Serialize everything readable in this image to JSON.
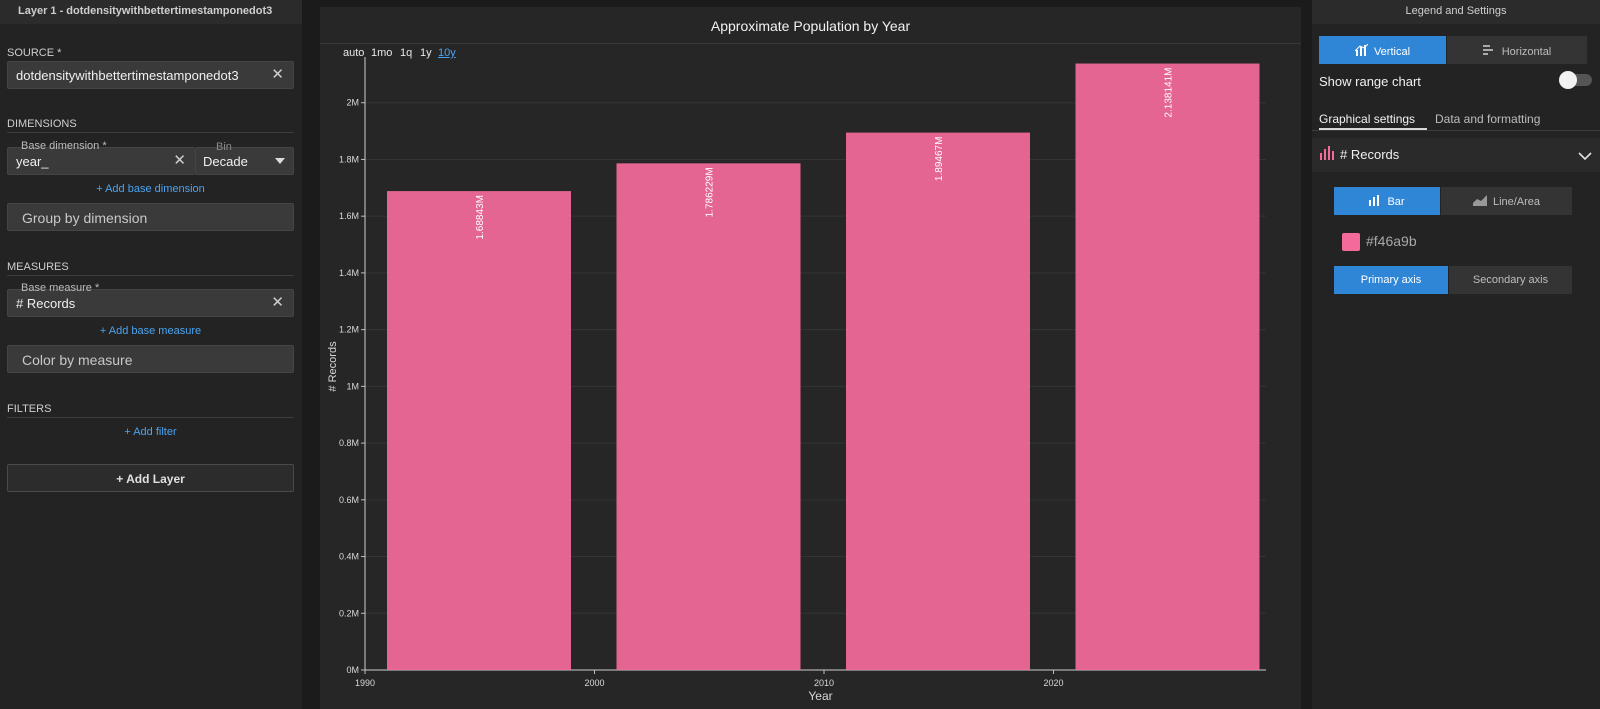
{
  "left_panel": {
    "layer_title": "Layer 1 - dotdensitywithbettertimestamponedot3",
    "source_label": "SOURCE *",
    "source_value": "dotdensitywithbettertimestamponedot3",
    "dimensions_label": "DIMENSIONS",
    "base_dimension_label": "Base dimension *",
    "base_dimension_value": "year_",
    "bin_label": "Bin",
    "bin_value": "Decade",
    "add_base_dimension": "+ Add base dimension",
    "group_by_dimension": "Group by dimension",
    "measures_label": "MEASURES",
    "base_measure_label": "Base measure *",
    "base_measure_value": "# Records",
    "add_base_measure": "+ Add base measure",
    "color_by_measure": "Color by measure",
    "filters_label": "FILTERS",
    "add_filter": "+ Add filter",
    "add_layer": "+ Add Layer",
    "clear_icon": "close-icon"
  },
  "zoom_options": [
    "auto",
    "1mo",
    "1q",
    "1y",
    "10y"
  ],
  "zoom_active": "10y",
  "chart_data": {
    "type": "bar",
    "title": "Approximate Population by Year",
    "xlabel": "Year",
    "ylabel": "# Records",
    "categories": [
      "1990",
      "2000",
      "2010",
      "2020"
    ],
    "x_ticks": [
      "1990",
      "2000",
      "2010",
      "2020"
    ],
    "y_ticks": [
      "0M",
      "0.2M",
      "0.4M",
      "0.6M",
      "0.8M",
      "1M",
      "1.2M",
      "1.4M",
      "1.6M",
      "1.8M",
      "2M"
    ],
    "ylim": [
      0,
      2.14
    ],
    "values": [
      1.68843,
      1.786229,
      1.89467,
      2.138141
    ],
    "value_labels": [
      "1.68843M",
      "1.786229M",
      "1.89467M",
      "2.138141M"
    ],
    "color": "#f46a9b",
    "grid": true
  },
  "right_panel": {
    "title": "Legend and Settings",
    "orientation_vertical": "Vertical",
    "orientation_horizontal": "Horizontal",
    "show_range_chart": "Show range chart",
    "show_range_chart_on": false,
    "tab_graphical": "Graphical settings",
    "tab_data": "Data and formatting",
    "measure_name": "# Records",
    "type_bar": "Bar",
    "type_line": "Line/Area",
    "color_hex": "#f46a9b",
    "axis_primary": "Primary axis",
    "axis_secondary": "Secondary axis"
  },
  "colors": {
    "accent": "#2f86d6",
    "link": "#4aa3f0",
    "bar": "#f46a9b"
  }
}
